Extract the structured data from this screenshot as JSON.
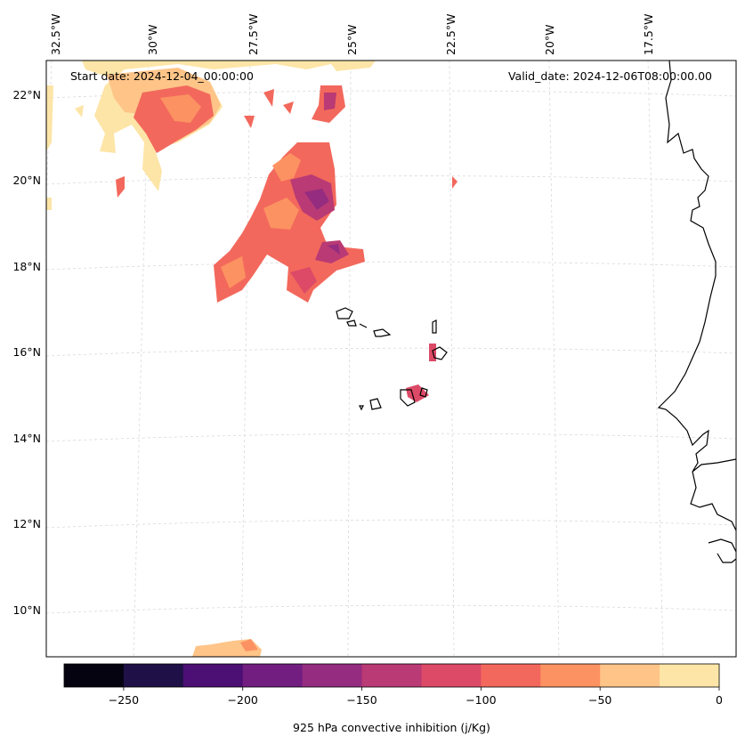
{
  "header": {
    "start_date": "Start date: 2024-12-04_00:00:00",
    "valid_date": "Valid_date: 2024-12-06T08:00:00.00"
  },
  "axes": {
    "lon_labels": [
      "32.5°W",
      "30°W",
      "27.5°W",
      "25°W",
      "22.5°W",
      "20°W",
      "17.5°W"
    ],
    "lat_labels": [
      "22°N",
      "20°N",
      "18°N",
      "16°N",
      "14°N",
      "12°N",
      "10°N"
    ]
  },
  "colorbar": {
    "label": "925 hPa convective inhibition (j/Kg)",
    "ticks": [
      "−250",
      "−200",
      "−150",
      "−100",
      "−50",
      "0"
    ],
    "tick_values": [
      -250,
      -200,
      -150,
      -100,
      -50,
      0
    ],
    "min": -275,
    "max": 0,
    "colors": [
      "#05030f",
      "#1f1147",
      "#4c0f74",
      "#721e80",
      "#952c80",
      "#b93a74",
      "#dc4a67",
      "#f3685c",
      "#fc9262",
      "#fec488",
      "#fde5a7"
    ]
  },
  "map": {
    "coastline_color": "#000000",
    "gridline_color": "#d9d9d9"
  }
}
